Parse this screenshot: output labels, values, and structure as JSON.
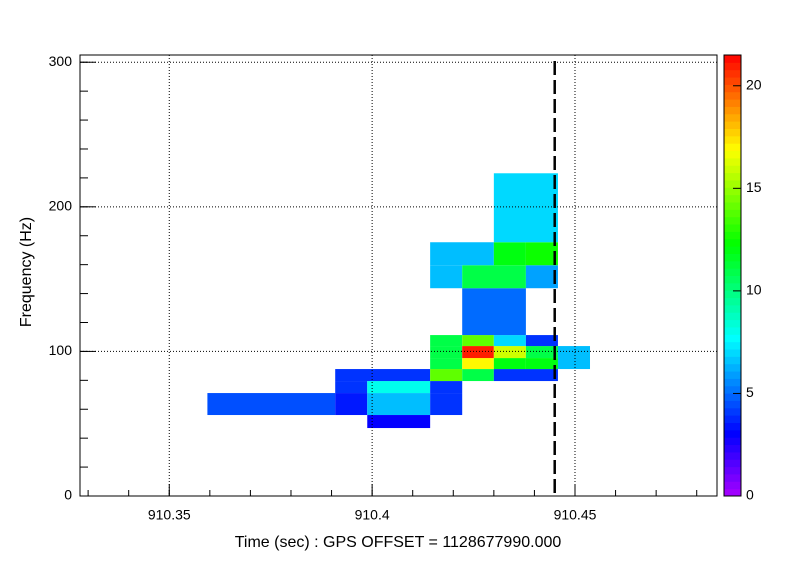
{
  "chart_data": {
    "type": "heatmap",
    "x_label": "Time (sec) : GPS OFFSET = 1128677990.000",
    "y_label": "Frequency (Hz)",
    "xlim": [
      910.328,
      910.485
    ],
    "xticks": [
      910.35,
      910.4,
      910.45
    ],
    "ylim": [
      0,
      305
    ],
    "yticks": [
      0,
      100,
      200,
      300
    ],
    "zlim": [
      0,
      21.5
    ],
    "zticks": [
      0,
      5,
      10,
      15,
      20
    ],
    "grid": true,
    "vline": 910.445,
    "tiles": [
      [
        910.3594,
        910.3909,
        56.0,
        71.2,
        4.5
      ],
      [
        910.3909,
        910.3988,
        56.0,
        71.2,
        3.5
      ],
      [
        910.3988,
        910.4143,
        56.0,
        71.2,
        6.5
      ],
      [
        910.4143,
        910.4222,
        56.0,
        71.2,
        4.0
      ],
      [
        910.3988,
        910.4143,
        47.0,
        56.0,
        3.0
      ],
      [
        910.3909,
        910.3988,
        71.2,
        79.5,
        4.0
      ],
      [
        910.3988,
        910.4143,
        71.2,
        79.5,
        8.0
      ],
      [
        910.4143,
        910.4222,
        71.2,
        79.5,
        4.0
      ],
      [
        910.3909,
        910.4143,
        79.5,
        87.8,
        4.0
      ],
      [
        910.4143,
        910.4222,
        79.5,
        87.8,
        14.0
      ],
      [
        910.4222,
        910.43,
        79.5,
        87.8,
        11.0
      ],
      [
        910.43,
        910.4458,
        79.5,
        87.8,
        4.0
      ],
      [
        910.4143,
        910.4222,
        87.8,
        95.4,
        11.0
      ],
      [
        910.4222,
        910.43,
        87.8,
        95.4,
        17.0
      ],
      [
        910.43,
        910.4379,
        87.8,
        95.4,
        12.0
      ],
      [
        910.4379,
        910.4458,
        87.8,
        95.4,
        12.0
      ],
      [
        910.4143,
        910.4222,
        95.4,
        103.7,
        11.0
      ],
      [
        910.4222,
        910.43,
        95.4,
        103.7,
        21.0
      ],
      [
        910.43,
        910.4379,
        95.4,
        103.7,
        16.0
      ],
      [
        910.4379,
        910.4458,
        95.4,
        103.7,
        11.0
      ],
      [
        910.4458,
        910.4537,
        87.8,
        103.7,
        6.5
      ],
      [
        910.4143,
        910.4222,
        103.7,
        111.3,
        11.0
      ],
      [
        910.4222,
        910.43,
        103.7,
        111.3,
        14.0
      ],
      [
        910.43,
        910.4379,
        103.7,
        111.3,
        7.0
      ],
      [
        910.4379,
        910.4458,
        103.7,
        111.3,
        4.0
      ],
      [
        910.4222,
        910.4379,
        111.3,
        143.7,
        5.0
      ],
      [
        910.4143,
        910.4222,
        143.7,
        159.6,
        6.5
      ],
      [
        910.4222,
        910.4379,
        143.7,
        159.6,
        11.0
      ],
      [
        910.4379,
        910.4458,
        143.7,
        159.6,
        6.0
      ],
      [
        910.4143,
        910.43,
        159.6,
        175.5,
        6.5
      ],
      [
        910.43,
        910.4379,
        159.6,
        175.5,
        12.0
      ],
      [
        910.4379,
        910.4458,
        159.6,
        175.5,
        12.5
      ],
      [
        910.43,
        910.4458,
        175.5,
        223.2,
        7.0
      ]
    ]
  }
}
